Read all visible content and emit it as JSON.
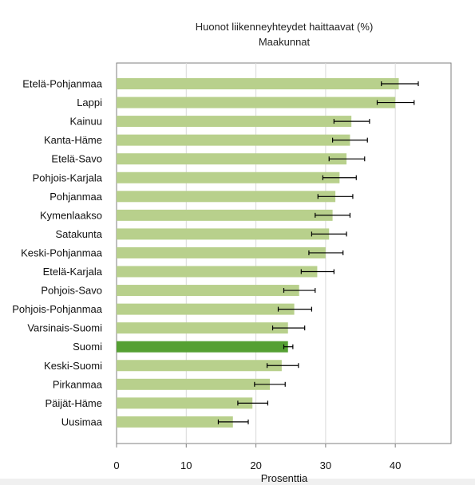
{
  "chart_data": {
    "type": "bar",
    "orientation": "horizontal",
    "title": "Huonot liikenneyhteydet haittaavat (%)",
    "subtitle": "Maakunnat",
    "xlabel": "Prosenttia",
    "ylabel": "",
    "xlim": [
      0,
      48
    ],
    "xticks": [
      0,
      10,
      20,
      30,
      40
    ],
    "grid": true,
    "legend": "none",
    "categories": [
      "Etelä-Pohjanmaa",
      "Lappi",
      "Kainuu",
      "Kanta-Häme",
      "Etelä-Savo",
      "Pohjois-Karjala",
      "Pohjanmaa",
      "Kymenlaakso",
      "Satakunta",
      "Keski-Pohjanmaa",
      "Etelä-Karjala",
      "Pohjois-Savo",
      "Pohjois-Pohjanmaa",
      "Varsinais-Suomi",
      "Suomi",
      "Keski-Suomi",
      "Pirkanmaa",
      "Päijät-Häme",
      "Uusimaa"
    ],
    "values": [
      40.5,
      40.0,
      33.7,
      33.5,
      33.0,
      32.0,
      31.4,
      31.0,
      30.5,
      30.0,
      28.8,
      26.2,
      25.5,
      24.6,
      24.6,
      23.7,
      22.0,
      19.5,
      16.7
    ],
    "error_low": [
      38.0,
      37.4,
      31.2,
      31.0,
      30.5,
      29.6,
      28.9,
      28.5,
      28.0,
      27.6,
      26.5,
      24.0,
      23.2,
      22.4,
      24.0,
      21.6,
      19.8,
      17.4,
      14.6
    ],
    "error_high": [
      43.3,
      42.7,
      36.3,
      36.0,
      35.6,
      34.4,
      33.9,
      33.5,
      33.0,
      32.5,
      31.2,
      28.5,
      28.0,
      27.0,
      25.3,
      26.1,
      24.2,
      21.7,
      18.9
    ],
    "highlight": "Suomi",
    "colors": {
      "bar": "#b8d08c",
      "highlight_bar": "#55a033",
      "error_bar": "#000000",
      "grid": "#d9d9d9",
      "axis": "#7f7f7f",
      "bottom_strip": "#f0f0f0"
    }
  }
}
